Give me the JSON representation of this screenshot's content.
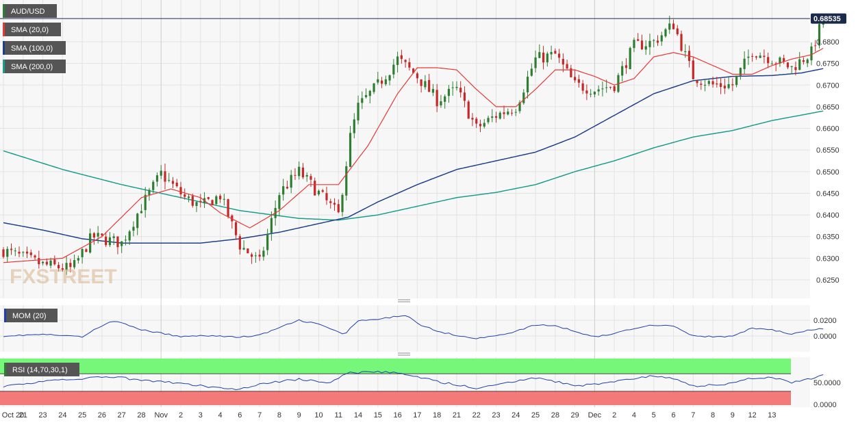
{
  "instrument": "AUD/USD",
  "legend": {
    "price_panel": [
      {
        "label": "AUD/USD",
        "color": "#2e7d32"
      },
      {
        "label": "SMA (20,0)",
        "color": "#e53935"
      },
      {
        "label": "SMA (100,0)",
        "color": "#1e3f8a"
      },
      {
        "label": "SMA (200,0)",
        "color": "#1a9e8a"
      }
    ],
    "mom_panel": {
      "label": "MOM (20)",
      "color": "#1f3fa8"
    },
    "rsi_panel": {
      "label": "RSI (14,70,30,1)",
      "color": "#2e7d32"
    }
  },
  "watermark": "FXSTREET",
  "last_price_label": "0.68535",
  "colors": {
    "up": "#2e7d32",
    "down": "#c62828",
    "sma20": "#e53935",
    "sma100": "#1e3f8a",
    "sma200": "#1a9e8a",
    "mom": "#1f3fa8",
    "rsi": "#1f3fa8",
    "overbought": "#77f77a",
    "oversold": "#f47a7a",
    "grid": "#e3e3e3",
    "legend_bg": "#555555",
    "price_badge": "#1b2a4a"
  },
  "chart_data": {
    "type": "candlestick",
    "timeframe_note": "4-hour candles",
    "x_tick_labels": [
      "Oct 20",
      "21",
      "23",
      "24",
      "25",
      "26",
      "27",
      "28",
      "Nov",
      "2",
      "3",
      "4",
      "6",
      "7",
      "8",
      "9",
      "10",
      "11",
      "14",
      "15",
      "16",
      "17",
      "18",
      "21",
      "22",
      "23",
      "24",
      "25",
      "28",
      "29",
      "Dec",
      "2",
      "4",
      "5",
      "6",
      "7",
      "8",
      "9",
      "12",
      "13"
    ],
    "price_axis": {
      "ticks": [
        "0.6800",
        "0.6750",
        "0.6700",
        "0.6650",
        "0.6600",
        "0.6550",
        "0.6500",
        "0.6450",
        "0.6400",
        "0.6350",
        "0.6300",
        "0.6250"
      ],
      "min": 0.621,
      "max": 0.69
    },
    "mom_axis": {
      "ticks": [
        "0.0200",
        "0.0000"
      ],
      "min": -0.0035,
      "max": 0.0245
    },
    "rsi_axis": {
      "ticks": [
        "50.0000",
        "0.0000"
      ],
      "min": 0,
      "max": 100,
      "overbought": 70,
      "oversold": 30
    },
    "price_anchors": [
      {
        "x": 0,
        "p": 0.6318
      },
      {
        "x": 2,
        "p": 0.6285
      },
      {
        "x": 3.5,
        "p": 0.6275
      },
      {
        "x": 4.5,
        "p": 0.635
      },
      {
        "x": 6,
        "p": 0.6335
      },
      {
        "x": 7,
        "p": 0.642
      },
      {
        "x": 8,
        "p": 0.6495
      },
      {
        "x": 9.2,
        "p": 0.644
      },
      {
        "x": 10,
        "p": 0.642
      },
      {
        "x": 11,
        "p": 0.6445
      },
      {
        "x": 12,
        "p": 0.633
      },
      {
        "x": 13,
        "p": 0.629
      },
      {
        "x": 14,
        "p": 0.645
      },
      {
        "x": 15,
        "p": 0.65
      },
      {
        "x": 16,
        "p": 0.645
      },
      {
        "x": 17,
        "p": 0.64
      },
      {
        "x": 17.6,
        "p": 0.658
      },
      {
        "x": 18,
        "p": 0.665
      },
      {
        "x": 19,
        "p": 0.67
      },
      {
        "x": 20,
        "p": 0.676
      },
      {
        "x": 21,
        "p": 0.672
      },
      {
        "x": 22,
        "p": 0.6665
      },
      {
        "x": 23,
        "p": 0.669
      },
      {
        "x": 24,
        "p": 0.66
      },
      {
        "x": 25,
        "p": 0.663
      },
      {
        "x": 26,
        "p": 0.665
      },
      {
        "x": 27,
        "p": 0.676
      },
      {
        "x": 28,
        "p": 0.677
      },
      {
        "x": 29,
        "p": 0.67
      },
      {
        "x": 30,
        "p": 0.669
      },
      {
        "x": 31,
        "p": 0.67
      },
      {
        "x": 32,
        "p": 0.679
      },
      {
        "x": 33,
        "p": 0.68
      },
      {
        "x": 34,
        "p": 0.684
      },
      {
        "x": 35,
        "p": 0.672
      },
      {
        "x": 36,
        "p": 0.67
      },
      {
        "x": 37,
        "p": 0.67
      },
      {
        "x": 38,
        "p": 0.678
      },
      {
        "x": 39,
        "p": 0.676
      },
      {
        "x": 40,
        "p": 0.674
      },
      {
        "x": 41,
        "p": 0.6775
      },
      {
        "x": 41.6,
        "p": 0.6854
      }
    ],
    "series": [
      {
        "name": "SMA (20,0)",
        "points": [
          {
            "x": 0,
            "p": 0.629
          },
          {
            "x": 3,
            "p": 0.63
          },
          {
            "x": 5,
            "p": 0.635
          },
          {
            "x": 7,
            "p": 0.644
          },
          {
            "x": 8.5,
            "p": 0.646
          },
          {
            "x": 10,
            "p": 0.644
          },
          {
            "x": 11,
            "p": 0.6405
          },
          {
            "x": 12.5,
            "p": 0.637
          },
          {
            "x": 14,
            "p": 0.641
          },
          {
            "x": 15.5,
            "p": 0.647
          },
          {
            "x": 17,
            "p": 0.647
          },
          {
            "x": 18.5,
            "p": 0.656
          },
          {
            "x": 20,
            "p": 0.668
          },
          {
            "x": 21,
            "p": 0.674
          },
          {
            "x": 22,
            "p": 0.674
          },
          {
            "x": 23,
            "p": 0.6735
          },
          {
            "x": 24,
            "p": 0.669
          },
          {
            "x": 25,
            "p": 0.665
          },
          {
            "x": 26,
            "p": 0.665
          },
          {
            "x": 27,
            "p": 0.669
          },
          {
            "x": 28,
            "p": 0.6735
          },
          {
            "x": 29,
            "p": 0.6735
          },
          {
            "x": 30,
            "p": 0.672
          },
          {
            "x": 31,
            "p": 0.67
          },
          {
            "x": 32,
            "p": 0.6715
          },
          {
            "x": 33,
            "p": 0.6765
          },
          {
            "x": 34,
            "p": 0.6775
          },
          {
            "x": 35,
            "p": 0.6765
          },
          {
            "x": 36,
            "p": 0.6745
          },
          {
            "x": 37,
            "p": 0.6725
          },
          {
            "x": 38,
            "p": 0.6725
          },
          {
            "x": 39,
            "p": 0.6745
          },
          {
            "x": 40,
            "p": 0.676
          },
          {
            "x": 41,
            "p": 0.677
          },
          {
            "x": 41.6,
            "p": 0.6785
          }
        ]
      },
      {
        "name": "SMA (100,0)",
        "points": [
          {
            "x": 0,
            "p": 0.6382
          },
          {
            "x": 2,
            "p": 0.6365
          },
          {
            "x": 4,
            "p": 0.6345
          },
          {
            "x": 6,
            "p": 0.6335
          },
          {
            "x": 8,
            "p": 0.6335
          },
          {
            "x": 10,
            "p": 0.6335
          },
          {
            "x": 12,
            "p": 0.6345
          },
          {
            "x": 14,
            "p": 0.636
          },
          {
            "x": 16,
            "p": 0.638
          },
          {
            "x": 17.5,
            "p": 0.6395
          },
          {
            "x": 19,
            "p": 0.643
          },
          {
            "x": 21,
            "p": 0.647
          },
          {
            "x": 23,
            "p": 0.6505
          },
          {
            "x": 25,
            "p": 0.6525
          },
          {
            "x": 27,
            "p": 0.6545
          },
          {
            "x": 29,
            "p": 0.658
          },
          {
            "x": 31,
            "p": 0.663
          },
          {
            "x": 33,
            "p": 0.668
          },
          {
            "x": 35,
            "p": 0.671
          },
          {
            "x": 37,
            "p": 0.672
          },
          {
            "x": 39,
            "p": 0.6722
          },
          {
            "x": 40.5,
            "p": 0.6728
          },
          {
            "x": 41.6,
            "p": 0.6738
          }
        ]
      },
      {
        "name": "SMA (200,0)",
        "points": [
          {
            "x": 0,
            "p": 0.6548
          },
          {
            "x": 3,
            "p": 0.6505
          },
          {
            "x": 6,
            "p": 0.647
          },
          {
            "x": 9,
            "p": 0.644
          },
          {
            "x": 12,
            "p": 0.641
          },
          {
            "x": 15,
            "p": 0.6392
          },
          {
            "x": 17,
            "p": 0.6388
          },
          {
            "x": 19,
            "p": 0.64
          },
          {
            "x": 21,
            "p": 0.642
          },
          {
            "x": 23,
            "p": 0.644
          },
          {
            "x": 25,
            "p": 0.6452
          },
          {
            "x": 27,
            "p": 0.647
          },
          {
            "x": 29,
            "p": 0.65
          },
          {
            "x": 31,
            "p": 0.6525
          },
          {
            "x": 33,
            "p": 0.6555
          },
          {
            "x": 35,
            "p": 0.658
          },
          {
            "x": 37,
            "p": 0.6595
          },
          {
            "x": 39,
            "p": 0.6618
          },
          {
            "x": 41.6,
            "p": 0.664
          }
        ]
      }
    ],
    "mom_points": [
      {
        "x": 0,
        "v": 0.0
      },
      {
        "x": 2,
        "v": 0.002
      },
      {
        "x": 4,
        "v": -0.001
      },
      {
        "x": 5.5,
        "v": 0.02
      },
      {
        "x": 7,
        "v": 0.008
      },
      {
        "x": 9,
        "v": -0.001
      },
      {
        "x": 10,
        "v": 0.001
      },
      {
        "x": 12,
        "v": -0.0015
      },
      {
        "x": 13,
        "v": 0.001
      },
      {
        "x": 15,
        "v": 0.02
      },
      {
        "x": 16,
        "v": 0.015
      },
      {
        "x": 17.3,
        "v": 0.002
      },
      {
        "x": 18,
        "v": 0.019
      },
      {
        "x": 19,
        "v": 0.021
      },
      {
        "x": 20.5,
        "v": 0.027
      },
      {
        "x": 21,
        "v": 0.016
      },
      {
        "x": 22,
        "v": 0.006
      },
      {
        "x": 23,
        "v": 0.001
      },
      {
        "x": 24,
        "v": -0.003
      },
      {
        "x": 25,
        "v": 0.0
      },
      {
        "x": 26,
        "v": 0.006
      },
      {
        "x": 27,
        "v": 0.014
      },
      {
        "x": 28,
        "v": 0.013
      },
      {
        "x": 29,
        "v": 0.006
      },
      {
        "x": 30,
        "v": -0.001
      },
      {
        "x": 31,
        "v": 0.003
      },
      {
        "x": 32,
        "v": 0.01
      },
      {
        "x": 33,
        "v": 0.014
      },
      {
        "x": 34,
        "v": 0.013
      },
      {
        "x": 35,
        "v": 0.0
      },
      {
        "x": 36,
        "v": -0.001
      },
      {
        "x": 37,
        "v": -0.0005
      },
      {
        "x": 38,
        "v": 0.01
      },
      {
        "x": 39,
        "v": 0.008
      },
      {
        "x": 40,
        "v": 0.002
      },
      {
        "x": 41,
        "v": 0.008
      },
      {
        "x": 41.6,
        "v": 0.009
      }
    ],
    "rsi_points": [
      {
        "x": 0,
        "v": 42
      },
      {
        "x": 2,
        "v": 52
      },
      {
        "x": 4,
        "v": 58
      },
      {
        "x": 5.5,
        "v": 64
      },
      {
        "x": 7,
        "v": 55
      },
      {
        "x": 9,
        "v": 48
      },
      {
        "x": 11,
        "v": 38
      },
      {
        "x": 12,
        "v": 34
      },
      {
        "x": 13,
        "v": 46
      },
      {
        "x": 15,
        "v": 58
      },
      {
        "x": 16.5,
        "v": 50
      },
      {
        "x": 17.5,
        "v": 72
      },
      {
        "x": 19,
        "v": 74
      },
      {
        "x": 20.5,
        "v": 70
      },
      {
        "x": 22,
        "v": 52
      },
      {
        "x": 23,
        "v": 45
      },
      {
        "x": 24,
        "v": 36
      },
      {
        "x": 25.5,
        "v": 50
      },
      {
        "x": 27,
        "v": 60
      },
      {
        "x": 28,
        "v": 52
      },
      {
        "x": 29,
        "v": 42
      },
      {
        "x": 30,
        "v": 46
      },
      {
        "x": 32,
        "v": 60
      },
      {
        "x": 33,
        "v": 66
      },
      {
        "x": 34,
        "v": 58
      },
      {
        "x": 35,
        "v": 42
      },
      {
        "x": 36.5,
        "v": 45
      },
      {
        "x": 38,
        "v": 60
      },
      {
        "x": 39,
        "v": 62
      },
      {
        "x": 40,
        "v": 50
      },
      {
        "x": 41,
        "v": 58
      },
      {
        "x": 41.6,
        "v": 66
      }
    ]
  }
}
